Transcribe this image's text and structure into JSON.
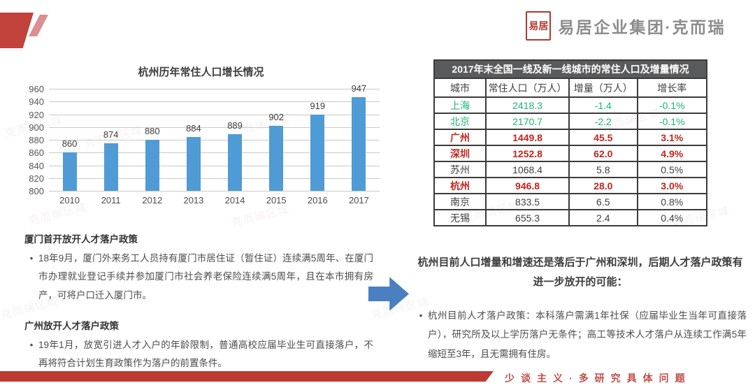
{
  "brand": {
    "seal_text": "易居",
    "logo_text": "易居企业集团·克而瑞",
    "slogan": "少谈主义·多研究具体问题"
  },
  "watermark": "克而瑞区域",
  "chart_data": {
    "type": "bar",
    "title": "杭州历年常住人口增长情况",
    "categories": [
      "2010",
      "2011",
      "2012",
      "2013",
      "2014",
      "2015",
      "2016",
      "2017"
    ],
    "values": [
      860,
      874,
      880,
      884,
      889,
      902,
      919,
      947
    ],
    "xlabel": "",
    "ylabel": "",
    "ylim": [
      800,
      960
    ],
    "ytick_step": 20,
    "bar_color": "#4f9bd5",
    "grid": true,
    "legend": false
  },
  "table": {
    "title": "2017年末全国一线及新一线城市的常住人口及增量情况",
    "columns": [
      "城市",
      "常住人口（万人）",
      "增量（万人）",
      "增长率"
    ],
    "rows": [
      {
        "city": "上海",
        "population": "2418.3",
        "increase": "-1.4",
        "rate": "-0.1%",
        "color": "green"
      },
      {
        "city": "北京",
        "population": "2170.7",
        "increase": "-2.2",
        "rate": "-0.1%",
        "color": "green"
      },
      {
        "city": "广州",
        "population": "1449.8",
        "increase": "45.5",
        "rate": "3.1%",
        "color": "red"
      },
      {
        "city": "深圳",
        "population": "1252.8",
        "increase": "62.0",
        "rate": "4.9%",
        "color": "red"
      },
      {
        "city": "苏州",
        "population": "1068.4",
        "increase": "5.8",
        "rate": "0.5%",
        "color": "dark"
      },
      {
        "city": "杭州",
        "population": "946.8",
        "increase": "28.0",
        "rate": "3.0%",
        "color": "red"
      },
      {
        "city": "南京",
        "population": "833.5",
        "increase": "6.5",
        "rate": "0.8%",
        "color": "dark"
      },
      {
        "city": "无锡",
        "population": "655.3",
        "increase": "2.4",
        "rate": "0.4%",
        "color": "dark"
      }
    ]
  },
  "policies": [
    {
      "title": "厦门首开放开人才落户政策",
      "bullet": "18年9月，厦门外来务工人员持有厦门市居住证（暂住证）连续满5周年、在厦门市办理就业登记手续并参加厦门市社会养老保险连续满5周年，且在本市拥有房产，可将户口迁入厦门市。"
    },
    {
      "title": "广州放开人才落户政策",
      "bullet": "19年1月，放宽引进人才入户的年龄限制，普通高校应届毕业生可直接落户，不再将符合计划生育政策作为落户的前置条件。"
    }
  ],
  "insight": {
    "heading": "杭州目前人口增量和增速还是落后于广州和深圳，后期人才落户政策有进一步放开的可能：",
    "bullet": "杭州目前人才落户政策：本科落户需满1年社保（应届毕业生当年可直接落户），研究所及以上学历落户无条件；高工等技术人才落户从连续工作满5年缩短至3年，且无需拥有住房。"
  },
  "colors": {
    "brand_red": "#bf3a33",
    "bar_blue": "#4f9bd5",
    "arrow_blue": "#4a7fc0",
    "table_title_bg": "#595a5c",
    "positive_red": "#c0261f",
    "negative_green": "#1cb373"
  }
}
